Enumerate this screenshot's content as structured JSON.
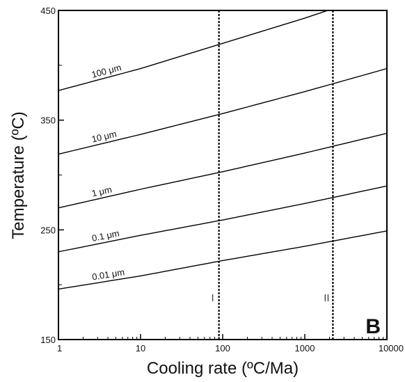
{
  "chart_data": {
    "type": "line",
    "xlabel": "Cooling rate (ºC/Ma)",
    "ylabel": "Temperature (ºC)",
    "x_scale": "log",
    "xlim": [
      1,
      10000
    ],
    "ylim": [
      150,
      450
    ],
    "x_ticks": [
      "1",
      "10",
      "100",
      "1000",
      "10000"
    ],
    "y_ticks": [
      "150",
      "250",
      "350",
      "450"
    ],
    "grid": false,
    "panel_label": "B",
    "series": [
      {
        "name": "100 μm",
        "x": [
          1,
          10,
          100,
          1000,
          10000
        ],
        "y": [
          377,
          397,
          420,
          443,
          468
        ]
      },
      {
        "name": "10 μm",
        "x": [
          1,
          10,
          100,
          1000,
          10000
        ],
        "y": [
          319,
          337,
          356,
          376,
          397
        ]
      },
      {
        "name": "1 μm",
        "x": [
          1,
          10,
          100,
          1000,
          10000
        ],
        "y": [
          270,
          287,
          303,
          320,
          338
        ]
      },
      {
        "name": "0.1 μm",
        "x": [
          1,
          10,
          100,
          1000,
          10000
        ],
        "y": [
          230,
          245,
          259,
          274,
          290
        ]
      },
      {
        "name": "0.01 μm",
        "x": [
          1,
          10,
          100,
          1000,
          10000
        ],
        "y": [
          196,
          208,
          222,
          235,
          249
        ]
      }
    ],
    "vertical_lines": [
      {
        "label": "I",
        "x": 90
      },
      {
        "label": "II",
        "x": 2200
      }
    ]
  }
}
